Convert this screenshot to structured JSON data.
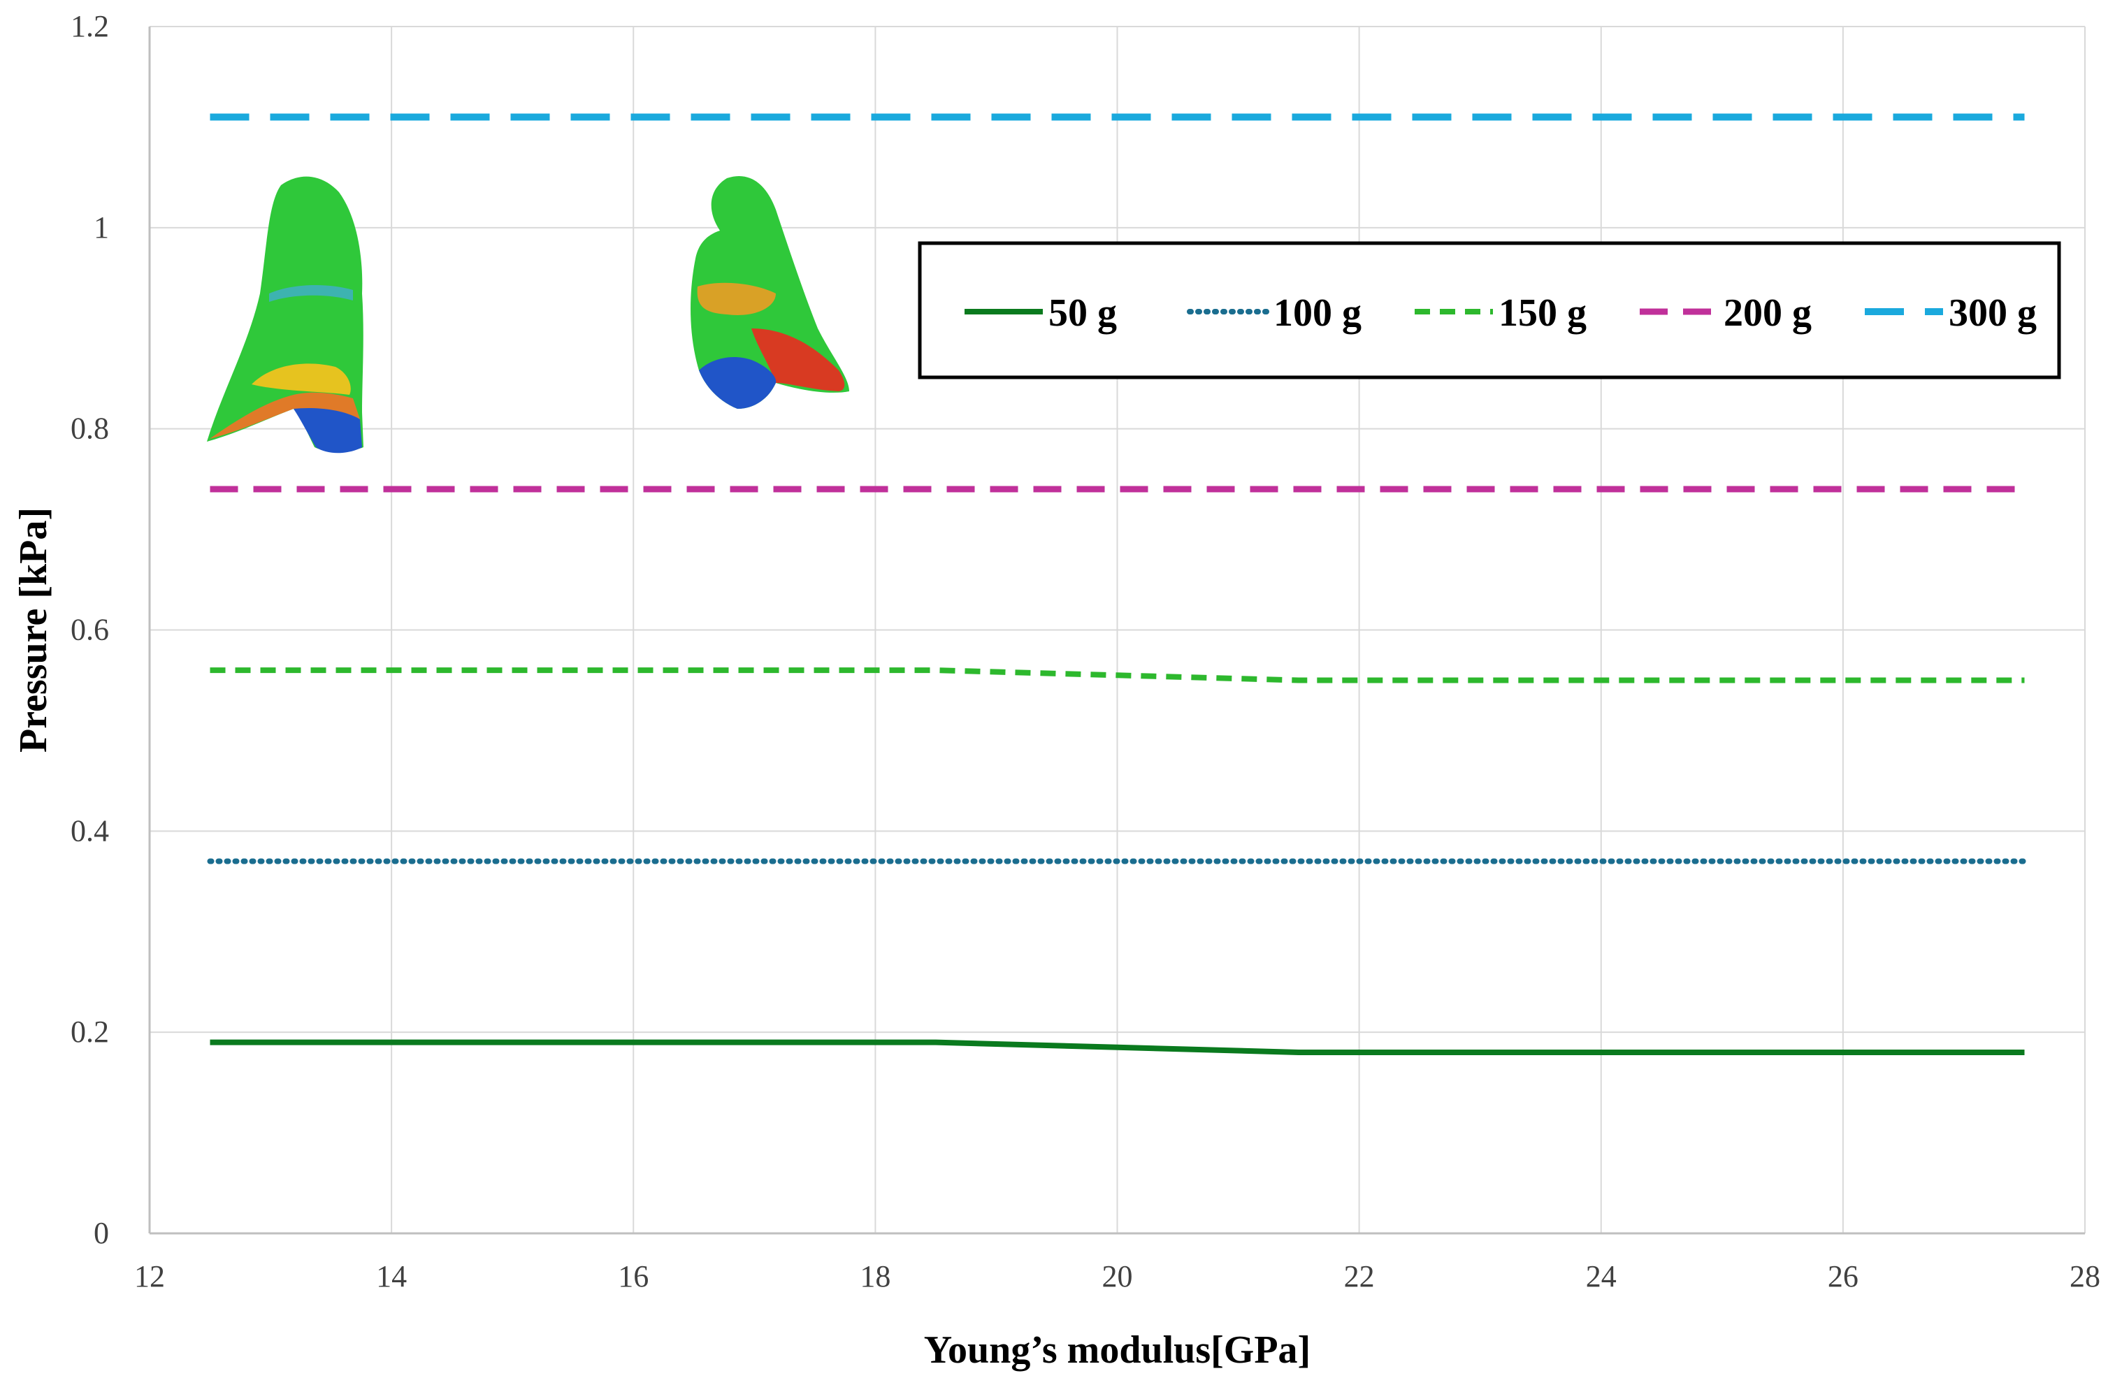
{
  "chart_data": {
    "type": "line",
    "title": "",
    "xlabel": "Young’s modulus[GPa]",
    "ylabel": "Pressure [kPa]",
    "xlim": [
      12,
      28
    ],
    "ylim": [
      0,
      1.2
    ],
    "x_ticks": [
      "12",
      "14",
      "16",
      "18",
      "20",
      "22",
      "24",
      "26",
      "28"
    ],
    "y_ticks": [
      "0",
      "0.2",
      "0.4",
      "0.6",
      "0.8",
      "1",
      "1.2"
    ],
    "grid": true,
    "legend_position": "top-right",
    "series": [
      {
        "name": "50 g",
        "color": "#0a7a1e",
        "dash": "solid",
        "points": [
          [
            12.5,
            0.19
          ],
          [
            18.5,
            0.19
          ],
          [
            20,
            0.185
          ],
          [
            21.5,
            0.18
          ],
          [
            27.5,
            0.18
          ]
        ]
      },
      {
        "name": "100 g",
        "color": "#1a6d8f",
        "dash": "dotted",
        "points": [
          [
            12.5,
            0.37
          ],
          [
            27.5,
            0.37
          ]
        ]
      },
      {
        "name": "150 g",
        "color": "#2db82d",
        "dash": "dashed",
        "points": [
          [
            12.5,
            0.56
          ],
          [
            18.5,
            0.56
          ],
          [
            20,
            0.555
          ],
          [
            21.5,
            0.55
          ],
          [
            27.5,
            0.55
          ]
        ]
      },
      {
        "name": "200 g",
        "color": "#c0309a",
        "dash": "longdash",
        "points": [
          [
            12.5,
            0.74
          ],
          [
            27.5,
            0.74
          ]
        ]
      },
      {
        "name": "300 g",
        "color": "#1aa9dd",
        "dash": "xlongdash",
        "points": [
          [
            12.5,
            1.11
          ],
          [
            27.5,
            1.11
          ]
        ]
      }
    ]
  }
}
